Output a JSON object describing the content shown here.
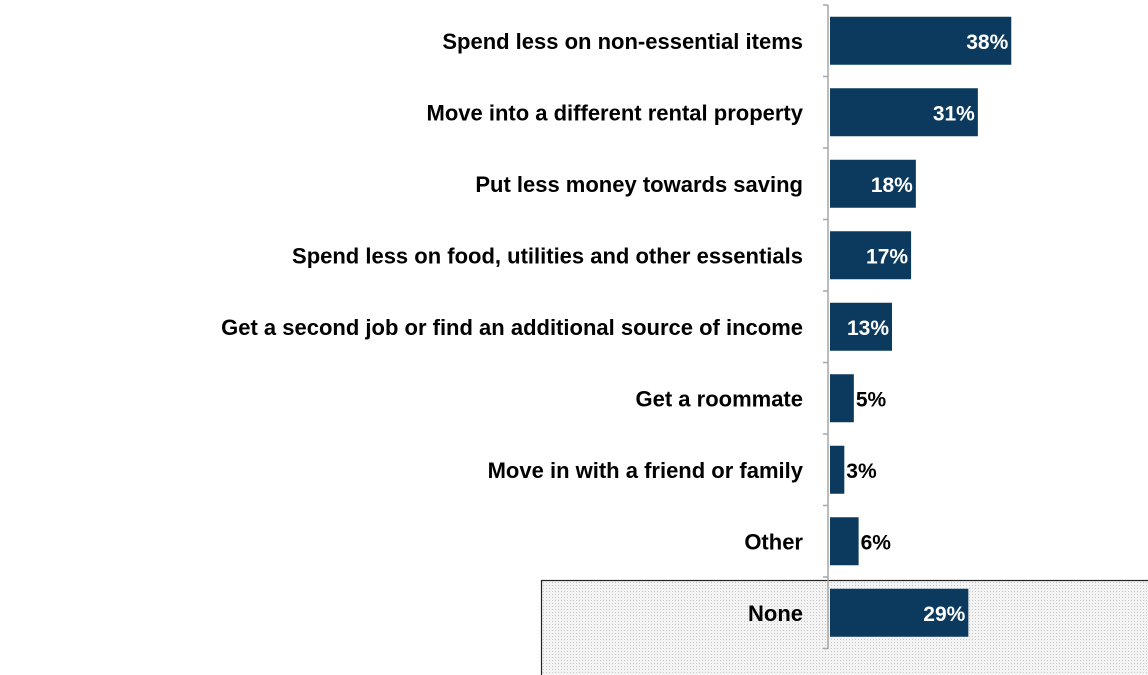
{
  "chart_data": {
    "type": "bar",
    "orientation": "horizontal",
    "categories": [
      "Spend less on non-essential items",
      "Move into a different rental property",
      "Put less money towards saving",
      "Spend less on food, utilities and other essentials",
      "Get a second job or find an additional source of income",
      "Get a roommate",
      "Move in with a friend or family",
      "Other",
      "None"
    ],
    "values": [
      38,
      31,
      18,
      17,
      13,
      5,
      3,
      6,
      29
    ],
    "value_labels": [
      "38%",
      "31%",
      "18%",
      "17%",
      "13%",
      "5%",
      "3%",
      "6%",
      "29%"
    ],
    "unit": "%",
    "title": "",
    "xlabel": "",
    "ylabel": "",
    "xlim": [
      0,
      70
    ],
    "grid": false,
    "legend": "none",
    "highlighted_category": "None"
  },
  "colors": {
    "bar": "#0b3a5e",
    "value_inside": "#ffffff",
    "value_outside": "#000000",
    "axis": "#a6a6a6",
    "highlight_box_border": "#222222",
    "highlight_box_fill": "#eeeeee"
  }
}
